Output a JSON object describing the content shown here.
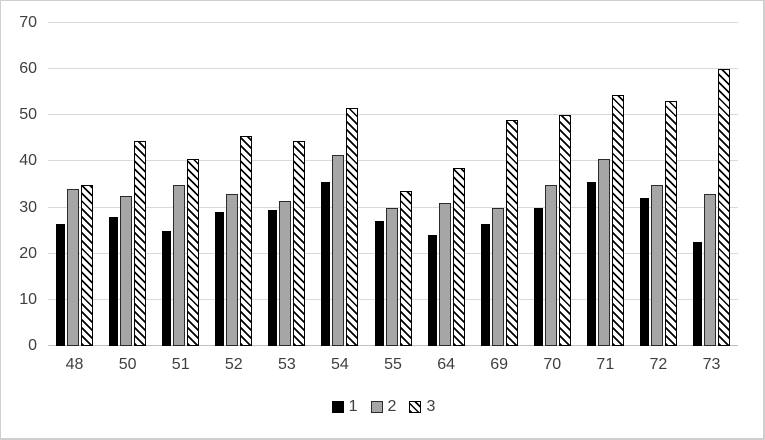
{
  "chart": {
    "background": "#ffffff",
    "frame_border_color": "#cfcfcf",
    "gridline_color": "#d9d9d9",
    "axis_line_color": "#bfbfbf",
    "label_color": "#3f3f3f",
    "series_swatches": [
      "solid-black-square",
      "solid-gray-square",
      "diagonal-hatch-square"
    ]
  },
  "chart_data": {
    "type": "bar",
    "title": "",
    "xlabel": "",
    "ylabel": "",
    "categories": [
      "48",
      "50",
      "51",
      "52",
      "53",
      "54",
      "55",
      "64",
      "69",
      "70",
      "71",
      "72",
      "73"
    ],
    "series": [
      {
        "name": "1",
        "fill": "solid",
        "color": "#000000",
        "values": [
          26.5,
          28,
          25,
          29,
          29.5,
          35.5,
          27,
          24,
          26.5,
          30,
          35.5,
          32,
          22.5
        ]
      },
      {
        "name": "2",
        "fill": "solid",
        "color": "#a6a6a6",
        "values": [
          34,
          32.5,
          35,
          33,
          31.5,
          41.5,
          30,
          31,
          30,
          35,
          40.5,
          35,
          33
        ]
      },
      {
        "name": "3",
        "fill": "diagonal-hatch-on-white",
        "color": "#ffffff",
        "values": [
          35,
          44.5,
          40.5,
          45.5,
          44.5,
          51.5,
          33.5,
          38.5,
          49,
          50,
          54.5,
          53,
          60
        ]
      }
    ],
    "ylim": [
      0,
      70
    ],
    "ytick_step": 10,
    "yticks": [
      "0",
      "10",
      "20",
      "30",
      "40",
      "50",
      "60",
      "70"
    ],
    "grid": true,
    "legend_position": "bottom",
    "legend_labels": [
      "1",
      "2",
      "3"
    ]
  }
}
